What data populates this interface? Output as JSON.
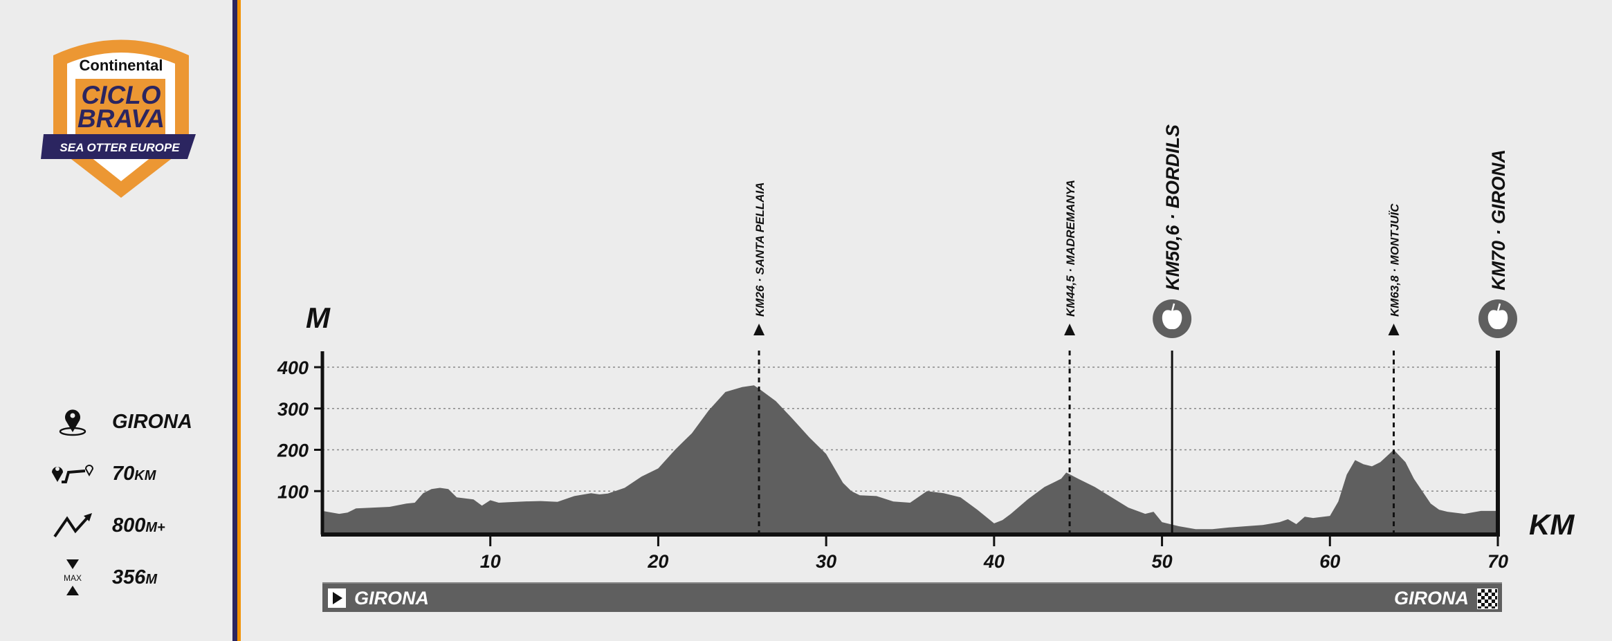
{
  "logo": {
    "brand": "Continental",
    "title_line1": "CICLO",
    "title_line2": "BRAVA",
    "banner": "SEA OTTER EUROPE",
    "colors": {
      "orange": "#ec9733",
      "navy": "#2b2560"
    }
  },
  "stats": [
    {
      "icon": "location-pin-icon",
      "value": "GIRONA",
      "unit": ""
    },
    {
      "icon": "route-distance-icon",
      "value": "70",
      "unit": "KM"
    },
    {
      "icon": "elevation-gain-icon",
      "value": "800",
      "unit": "M+"
    },
    {
      "icon": "max-altitude-icon",
      "icon_label": "MAX",
      "value": "356",
      "unit": "M"
    }
  ],
  "route_bar": {
    "start": "GIRONA",
    "finish": "GIRONA",
    "start_icon": "play-flag-icon",
    "finish_icon": "checkered-flag-icon"
  },
  "chart_data": {
    "type": "area",
    "xlabel": "KM",
    "ylabel": "M",
    "xlim": [
      0,
      70
    ],
    "ylim": [
      0,
      400
    ],
    "x_ticks": [
      10,
      20,
      30,
      40,
      50,
      60,
      70
    ],
    "y_ticks": [
      100,
      200,
      300,
      400
    ],
    "grid": "horizontal dotted",
    "fill_color": "#5f5f5f",
    "x": [
      0,
      1,
      1.5,
      2,
      3,
      4,
      5,
      5.5,
      6,
      6.5,
      7,
      7.5,
      8,
      9,
      9.5,
      10,
      10.5,
      11,
      12,
      13,
      14,
      15,
      16,
      16.5,
      17,
      18,
      19,
      20,
      21,
      21.5,
      22,
      23,
      24,
      25,
      25.7,
      26,
      27,
      28,
      29,
      30,
      31,
      31.5,
      32,
      33,
      34,
      35,
      36,
      37,
      38,
      39,
      40,
      40.5,
      41,
      42,
      43,
      44,
      44.3,
      45,
      46,
      47,
      48,
      49,
      49.5,
      50,
      51,
      52,
      53,
      54,
      55,
      56,
      57,
      57.5,
      58,
      58.5,
      59,
      60,
      60.5,
      61,
      61.5,
      62,
      62.5,
      63,
      63.8,
      64.5,
      65,
      66,
      66.5,
      67,
      68,
      69,
      70
    ],
    "y": [
      52,
      45,
      48,
      58,
      60,
      62,
      70,
      72,
      95,
      105,
      108,
      105,
      85,
      80,
      65,
      78,
      72,
      73,
      75,
      76,
      74,
      88,
      95,
      92,
      94,
      108,
      135,
      155,
      200,
      220,
      240,
      295,
      340,
      352,
      356,
      348,
      318,
      275,
      230,
      190,
      120,
      100,
      90,
      88,
      75,
      72,
      100,
      95,
      85,
      55,
      22,
      30,
      45,
      80,
      110,
      130,
      145,
      130,
      110,
      85,
      60,
      45,
      50,
      25,
      15,
      8,
      8,
      12,
      15,
      18,
      25,
      32,
      20,
      38,
      35,
      40,
      75,
      140,
      175,
      165,
      160,
      170,
      200,
      170,
      130,
      70,
      55,
      50,
      45,
      52,
      52
    ],
    "markers": [
      {
        "km": 26,
        "label": "KM26 · SANTA PELLAIA",
        "style": "summit"
      },
      {
        "km": 44.5,
        "label": "KM44,5 · MADREMANYA",
        "style": "summit"
      },
      {
        "km": 50.6,
        "label": "KM50,6 · BORDILS",
        "style": "feed",
        "icon": "apple-icon"
      },
      {
        "km": 63.8,
        "label": "KM63,8 · MONTJUÏC",
        "style": "summit"
      },
      {
        "km": 70,
        "label": "KM70 · GIRONA",
        "style": "finish",
        "icon": "apple-icon"
      }
    ]
  }
}
